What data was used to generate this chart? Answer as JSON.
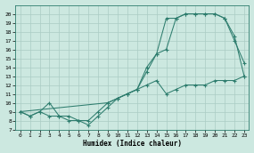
{
  "xlabel": "Humidex (Indice chaleur)",
  "background_color": "#cce8e0",
  "line_color": "#2e7d6e",
  "grid_color": "#aaccc4",
  "xlim": [
    -0.5,
    23.5
  ],
  "ylim": [
    7,
    21
  ],
  "xticks": [
    0,
    1,
    2,
    3,
    4,
    5,
    6,
    7,
    8,
    9,
    10,
    11,
    12,
    13,
    14,
    15,
    16,
    17,
    18,
    19,
    20,
    21,
    22,
    23
  ],
  "yticks": [
    7,
    8,
    9,
    10,
    11,
    12,
    13,
    14,
    15,
    16,
    17,
    18,
    19,
    20
  ],
  "series1_x": [
    0,
    1,
    2,
    3,
    4,
    5,
    6,
    7,
    8,
    9,
    10,
    11,
    12,
    13,
    14,
    15,
    16,
    17,
    18,
    19,
    20,
    21,
    22,
    23
  ],
  "series1_y": [
    9,
    8.5,
    9,
    10,
    8.5,
    8.5,
    8,
    8,
    9,
    10,
    10.5,
    11,
    11.5,
    14,
    15.5,
    16,
    19.5,
    20,
    20,
    20,
    20,
    19.5,
    17.5,
    13
  ],
  "series2_x": [
    0,
    1,
    2,
    3,
    4,
    5,
    6,
    7,
    8,
    9,
    10,
    11,
    12,
    13,
    14,
    15,
    16,
    17,
    18,
    19,
    20,
    21,
    22,
    23
  ],
  "series2_y": [
    9,
    8.5,
    9,
    8.5,
    8.5,
    8,
    8,
    7.5,
    8.5,
    9.5,
    10.5,
    11,
    11.5,
    13.5,
    15.5,
    19.5,
    19.5,
    20,
    20,
    20,
    20,
    19.5,
    17,
    14.5
  ],
  "series3_x": [
    0,
    9,
    10,
    11,
    12,
    13,
    14,
    15,
    16,
    17,
    18,
    19,
    20,
    21,
    22,
    23
  ],
  "series3_y": [
    9,
    10,
    10.5,
    11,
    11.5,
    12,
    12.5,
    11,
    11.5,
    12,
    12,
    12,
    12.5,
    12.5,
    12.5,
    13
  ]
}
